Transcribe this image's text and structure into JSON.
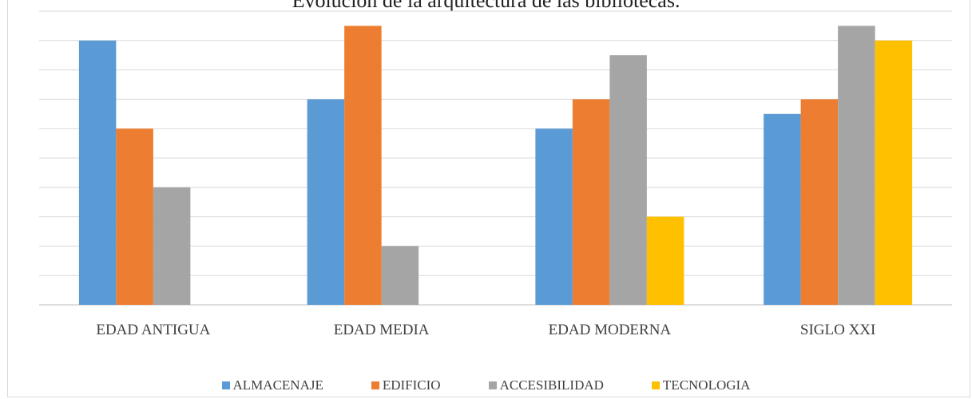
{
  "chart_data": {
    "type": "bar",
    "title": "Evolución de la arquitectura de las bibliotecas.",
    "categories": [
      "EDAD ANTIGUA",
      "EDAD MEDIA",
      "EDAD MODERNA",
      "SIGLO XXI"
    ],
    "series": [
      {
        "name": "ALMACENAJE",
        "color": "#5b9bd5",
        "values": [
          9,
          7,
          6,
          6.5
        ]
      },
      {
        "name": "EDIFICIO",
        "color": "#ed7d31",
        "values": [
          6,
          9.5,
          7,
          7
        ]
      },
      {
        "name": "ACCESIBILIDAD",
        "color": "#a5a5a5",
        "values": [
          4,
          2,
          8.5,
          9.5
        ]
      },
      {
        "name": "TECNOLOGIA",
        "color": "#ffc000",
        "values": [
          0,
          0,
          3,
          9
        ]
      }
    ],
    "ylim": [
      0,
      10
    ],
    "grid": true,
    "legend_position": "bottom"
  }
}
